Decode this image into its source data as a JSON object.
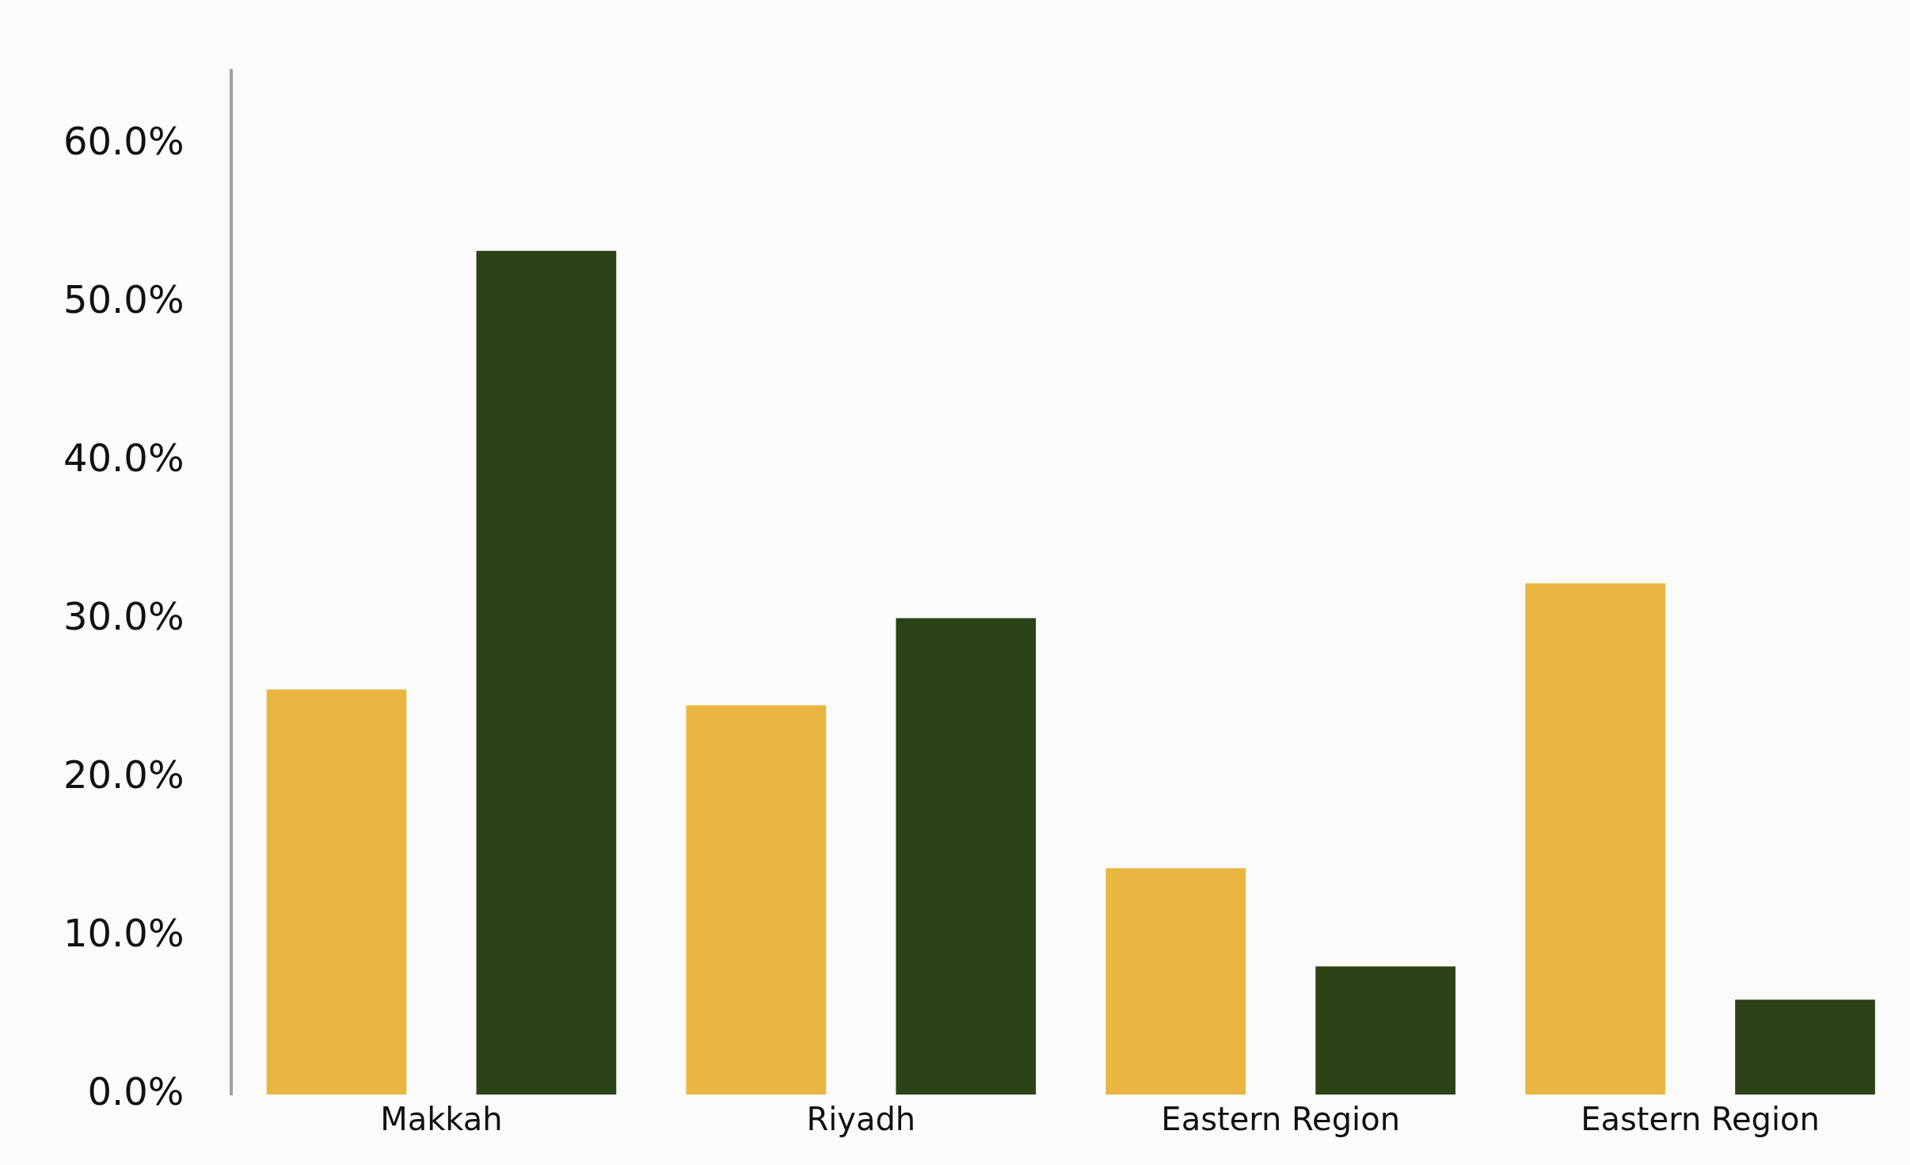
{
  "chart_data": {
    "type": "bar",
    "categories": [
      "Makkah",
      "Riyadh",
      "Eastern Region",
      "Eastern Region"
    ],
    "series": [
      {
        "color": "#eab642",
        "values": [
          25.6,
          24.6,
          14.3,
          32.3
        ]
      },
      {
        "color": "#2c4318",
        "values": [
          53.3,
          30.1,
          8.1,
          6.0
        ]
      }
    ],
    "ylim": [
      0,
      64.7
    ],
    "yticks": [
      {
        "value": 0,
        "label": "0.0%"
      },
      {
        "value": 10,
        "label": "10.0%"
      },
      {
        "value": 20,
        "label": "20.0%"
      },
      {
        "value": 30,
        "label": "30.0%"
      },
      {
        "value": 40,
        "label": "40.0%"
      },
      {
        "value": 50,
        "label": "50.0%"
      },
      {
        "value": 60,
        "label": "60.0%"
      }
    ],
    "grid": false,
    "legend": false
  }
}
